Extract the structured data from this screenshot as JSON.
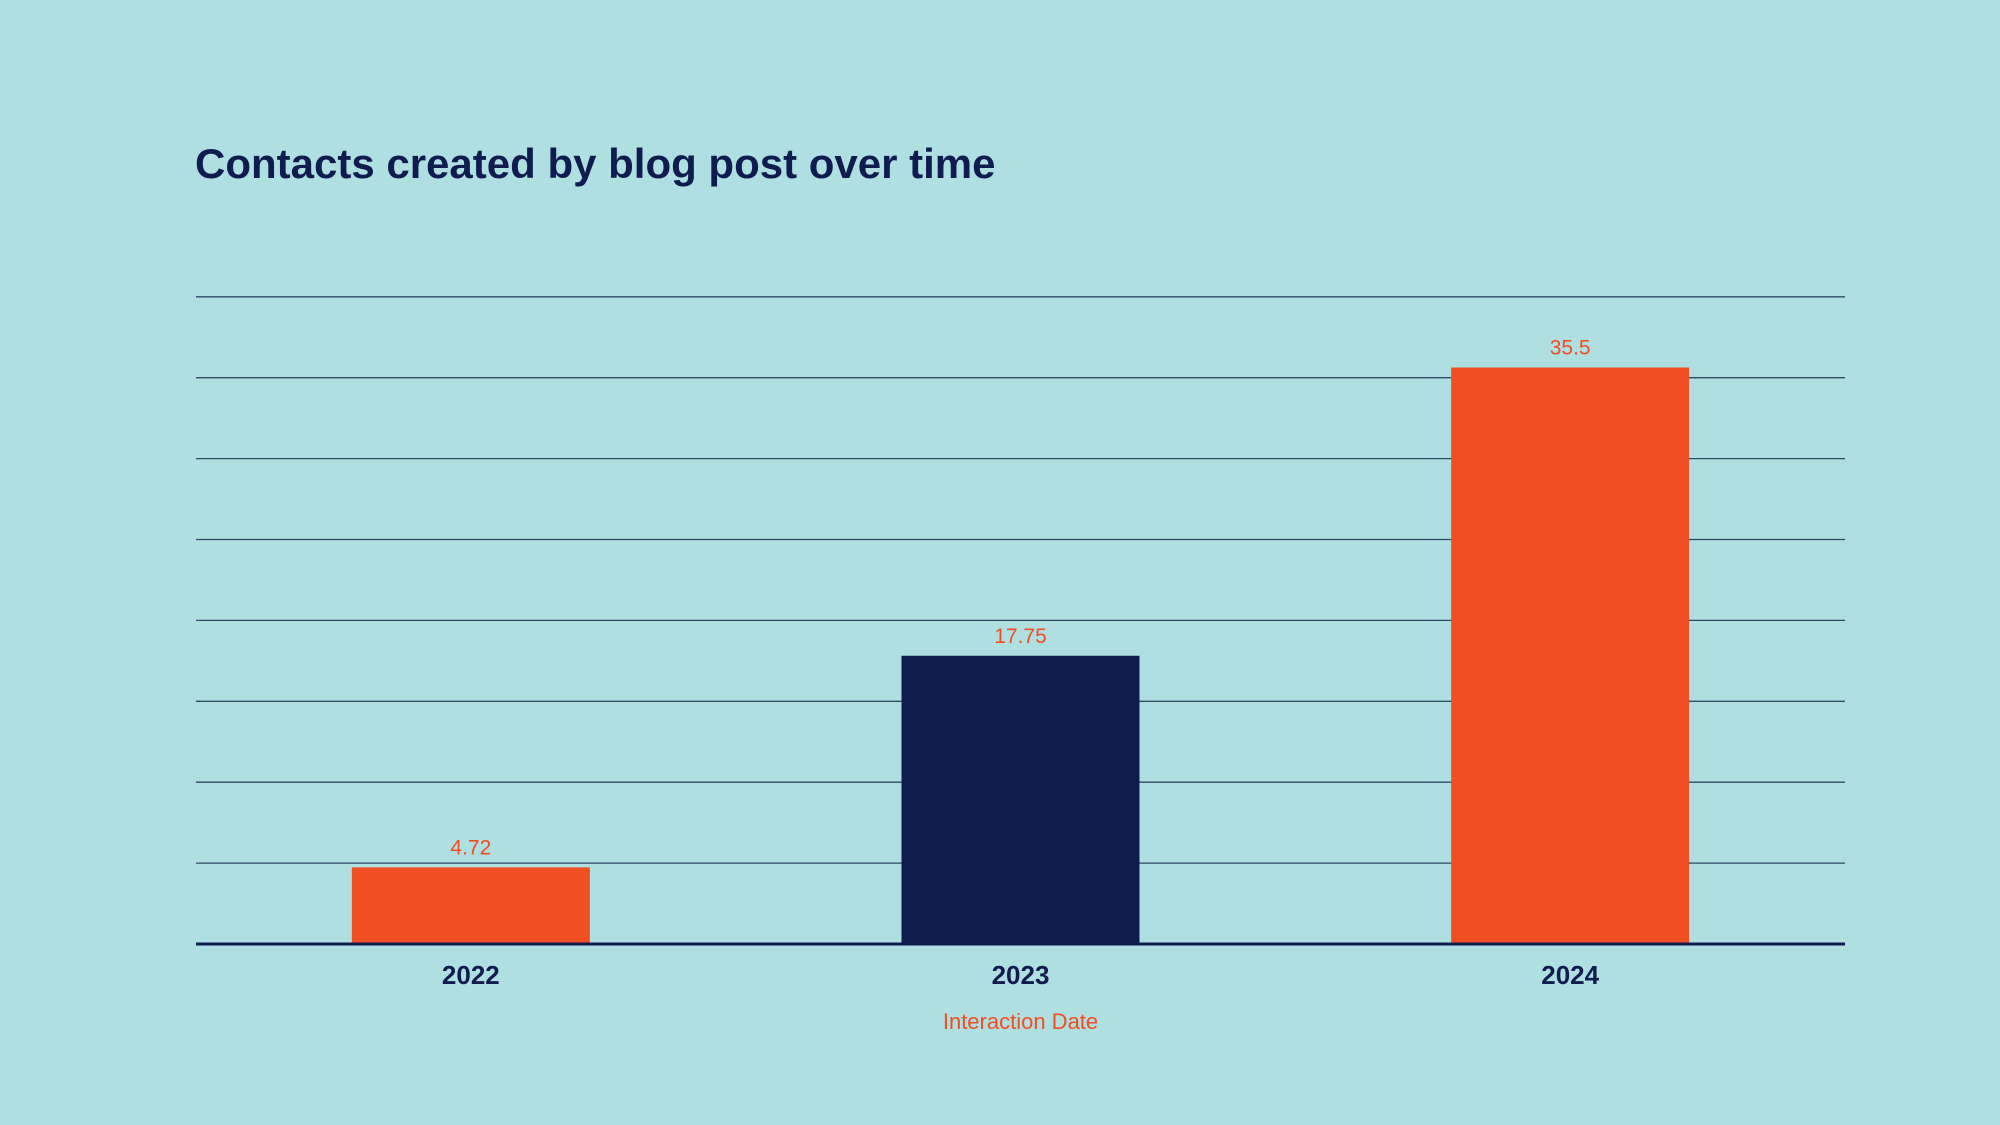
{
  "chart_data": {
    "type": "bar",
    "title": "Contacts created by blog post over time",
    "xlabel": "Interaction Date",
    "ylabel": "",
    "categories": [
      "2022",
      "2023",
      "2024"
    ],
    "values": [
      4.72,
      17.75,
      35.5
    ],
    "data_labels": [
      "4.72",
      "17.75",
      "35.5"
    ],
    "bar_colors": [
      "#f04e23",
      "#111c4e",
      "#f04e23"
    ],
    "ylim": [
      0,
      40
    ],
    "grid": true,
    "grid_lines": 8,
    "legend": "none"
  },
  "colors": {
    "background": "#b0dfe1",
    "text_dark": "#111c4e",
    "accent": "#f04e23",
    "gridline": "#2e4a66"
  }
}
